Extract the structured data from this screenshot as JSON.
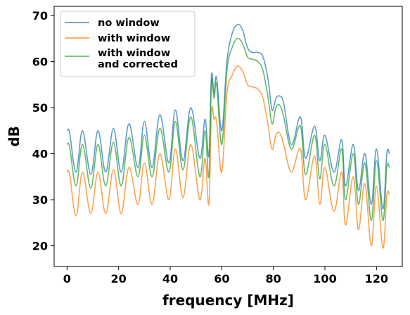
{
  "chart_data": {
    "type": "line",
    "title": "",
    "xlabel": "frequency [MHz]",
    "ylabel": "dB",
    "xlim": [
      -5,
      130
    ],
    "ylim": [
      15.5,
      72
    ],
    "xticks": [
      0,
      20,
      40,
      60,
      80,
      100,
      120
    ],
    "yticks": [
      20,
      30,
      40,
      50,
      60,
      70
    ],
    "grid": false,
    "legend": "top-left",
    "series": [
      {
        "name": "no window",
        "color": "#1f77b4",
        "x": [
          0,
          1,
          3.5,
          6,
          9.2,
          12,
          15,
          18,
          21,
          24,
          27.5,
          30,
          33,
          36,
          39.5,
          42,
          45,
          48,
          51.5,
          53.5,
          55,
          56,
          57,
          58,
          60,
          62,
          64,
          66,
          68,
          70,
          72,
          74,
          76,
          78,
          79.5,
          81,
          82.5,
          84,
          87,
          90.5,
          92.5,
          96,
          98,
          100,
          103.5,
          106.5,
          108,
          111,
          113,
          115.5,
          118,
          120,
          122.5,
          124,
          125
        ],
        "values": [
          45,
          44.5,
          36,
          45,
          35.5,
          45,
          36,
          45.5,
          36,
          46.5,
          37,
          47,
          37,
          48.5,
          38,
          49.5,
          38.5,
          50,
          39,
          47.5,
          39.5,
          57,
          53,
          56.5,
          45,
          60,
          66,
          68,
          67,
          63,
          62,
          62,
          61,
          56,
          49.5,
          52,
          52.5,
          51,
          42,
          48,
          39,
          46,
          38.5,
          44,
          36,
          43,
          33,
          42,
          32,
          40,
          29,
          41,
          28,
          40,
          40
        ]
      },
      {
        "name": "with window",
        "color": "#ff7f0e",
        "x": [
          0,
          1,
          3.5,
          6,
          9.2,
          12,
          15,
          18,
          21,
          24,
          27.5,
          30,
          33,
          36,
          39.5,
          42,
          45,
          48,
          51.5,
          53.5,
          55,
          56,
          57,
          58,
          60,
          62,
          64,
          66,
          68,
          70,
          72,
          74,
          76,
          78,
          79.5,
          81,
          82.5,
          84,
          87,
          90.5,
          92.5,
          96,
          98,
          100,
          103.5,
          106.5,
          108,
          111,
          113,
          115.5,
          118,
          120,
          122.5,
          124,
          125
        ],
        "values": [
          36,
          35.5,
          26.5,
          36,
          27,
          36,
          27,
          36.5,
          27,
          37,
          29,
          38,
          29,
          40,
          30,
          41,
          30.5,
          42,
          30,
          39,
          29,
          49,
          47.5,
          47,
          36,
          53,
          57,
          59,
          58,
          55,
          54.5,
          54,
          52,
          46,
          41,
          44,
          44.5,
          42,
          36,
          41,
          30,
          39.5,
          29,
          37,
          27.5,
          36,
          24.5,
          35,
          23.5,
          33.5,
          20,
          33,
          19.5,
          31,
          31
        ]
      },
      {
        "name": "with window\nand corrected",
        "color": "#2ca02c",
        "x": [
          0,
          1,
          3.5,
          6,
          9.2,
          12,
          15,
          18,
          21,
          24,
          27.5,
          30,
          33,
          36,
          39.5,
          42,
          45,
          48,
          51.5,
          53.5,
          55,
          56,
          57,
          58,
          60,
          62,
          64,
          66,
          68,
          70,
          72,
          74,
          76,
          78,
          79.5,
          81,
          82.5,
          84,
          87,
          90.5,
          92.5,
          96,
          98,
          100,
          103.5,
          106.5,
          108,
          111,
          113,
          115.5,
          118,
          120,
          122.5,
          124,
          125
        ],
        "values": [
          42,
          41.5,
          33,
          42,
          32.5,
          42,
          33,
          42.5,
          33,
          43.5,
          35,
          44,
          35,
          45.5,
          36,
          47,
          36.5,
          48,
          35,
          45,
          35,
          55.5,
          52,
          55,
          42,
          58,
          63,
          65,
          64,
          61,
          60.5,
          60,
          58,
          52,
          46.5,
          50,
          50.5,
          48,
          41,
          46,
          35.5,
          44,
          34.5,
          42,
          33,
          41,
          30,
          40,
          29,
          38,
          25.5,
          38.5,
          25.5,
          37,
          37
        ]
      }
    ]
  }
}
